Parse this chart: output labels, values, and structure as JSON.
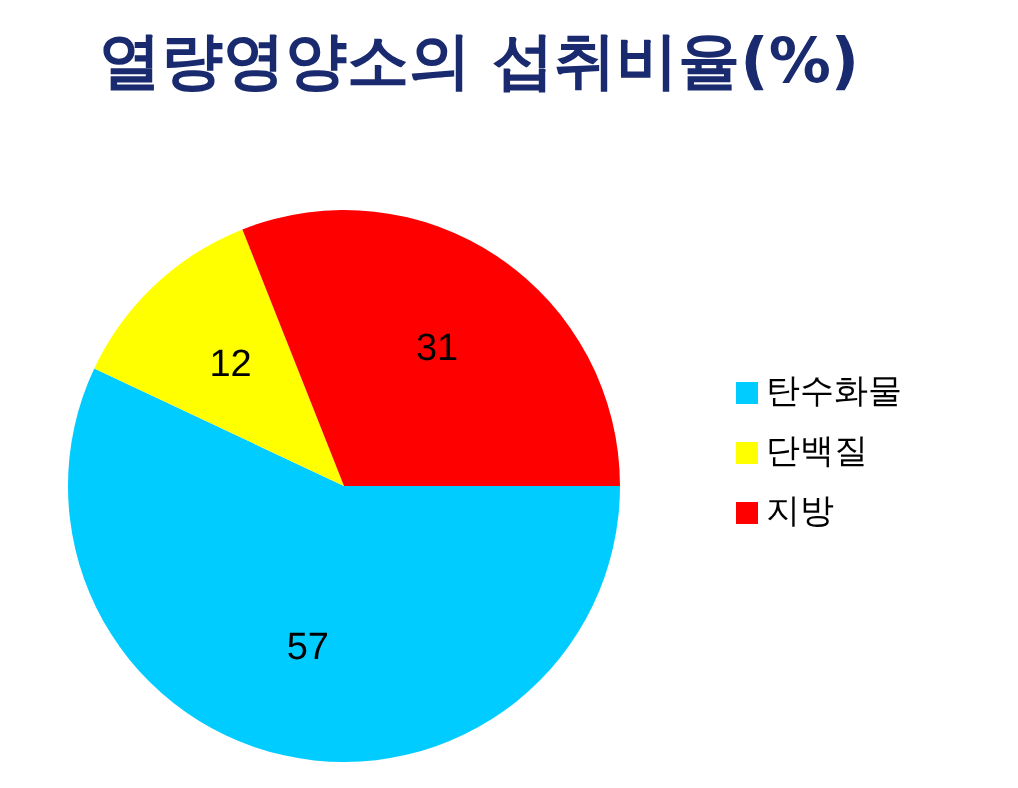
{
  "chart_data": {
    "type": "pie",
    "title": "열량영양소의 섭취비율(%)",
    "categories": [
      "탄수화물",
      "단백질",
      "지방"
    ],
    "values": [
      57,
      12,
      31
    ],
    "colors": [
      "#00ccff",
      "#ffff00",
      "#ff0000"
    ],
    "data_labels": true,
    "legend": "right"
  }
}
